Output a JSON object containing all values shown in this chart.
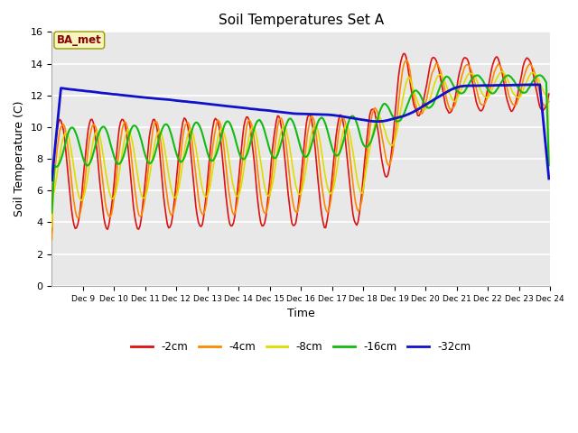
{
  "title": "Soil Temperatures Set A",
  "xlabel": "Time",
  "ylabel": "Soil Temperature (C)",
  "annotation_text": "BA_met",
  "annotation_color": "#8B0000",
  "annotation_bg": "#F5F5C0",
  "ylim": [
    0,
    16
  ],
  "yticks": [
    0,
    2,
    4,
    6,
    8,
    10,
    12,
    14,
    16
  ],
  "bg_color": "#E8E8E8",
  "colors": {
    "-2cm": "#DD1111",
    "-4cm": "#FF8800",
    "-8cm": "#DDDD00",
    "-16cm": "#11BB11",
    "-32cm": "#1111CC"
  },
  "linewidths": {
    "-2cm": 1.2,
    "-4cm": 1.2,
    "-8cm": 1.2,
    "-16cm": 1.5,
    "-32cm": 2.0
  },
  "n_per_day": 24,
  "start_day": 8,
  "end_day": 24
}
